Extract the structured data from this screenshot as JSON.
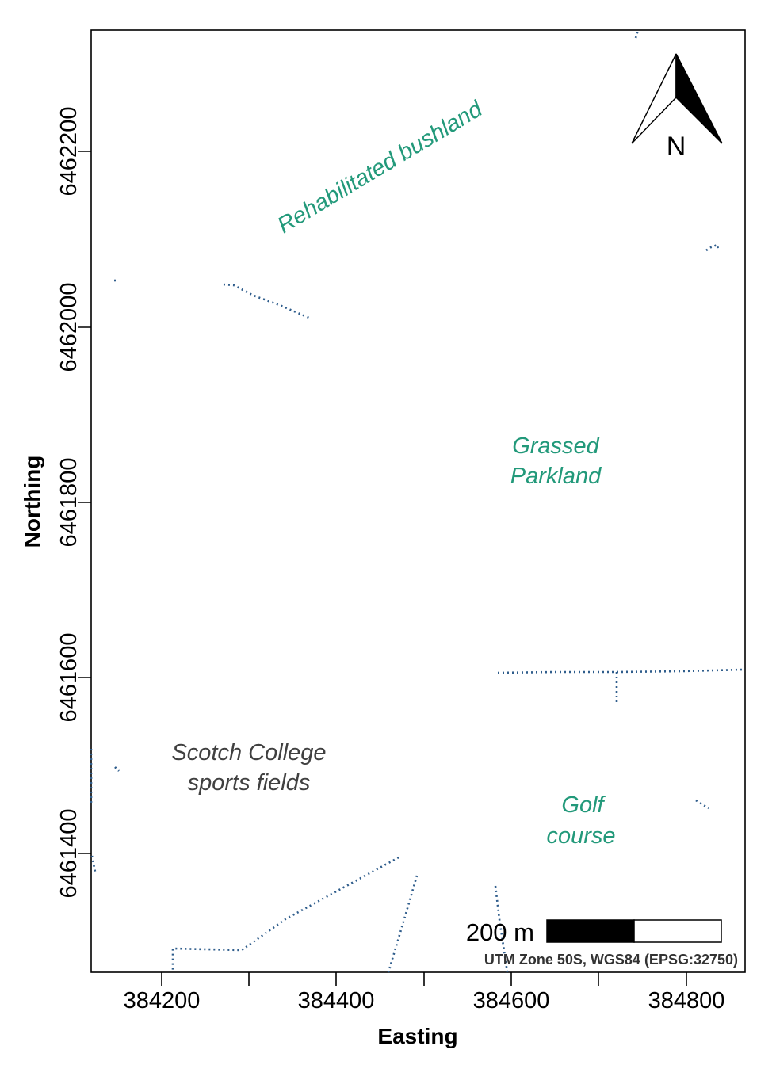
{
  "axes": {
    "x_title": "Easting",
    "y_title": "Northing",
    "x_ticks": [
      "384200",
      "384400",
      "384600",
      "384800"
    ],
    "y_ticks": [
      "6461400",
      "6461600",
      "6461800",
      "6462000",
      "6462200"
    ]
  },
  "labels": {
    "bushland": "Rehabilitated bushland",
    "parkland_line1": "Grassed",
    "parkland_line2": "Parkland",
    "scotch_line1": "Scotch College",
    "scotch_line2": "sports fields",
    "golf_line1": "Golf",
    "golf_line2": "course"
  },
  "north_arrow": {
    "letter": "N",
    "icon": "north-arrow-icon"
  },
  "scale_bar": {
    "label": "200 m",
    "distance_m": 200
  },
  "crs_note": "UTM Zone 50S, WGS84 (EPSG:32750)",
  "colors": {
    "area_label": "#22997a",
    "scotch_label": "#404040",
    "path": "#2f5d8c"
  }
}
